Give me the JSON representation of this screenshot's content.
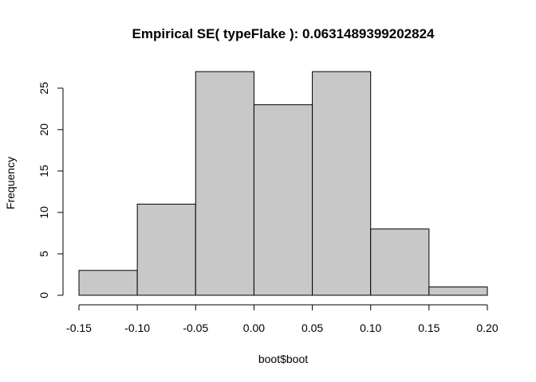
{
  "chart_data": {
    "type": "bar",
    "title": "Empirical SE( typeFlake ):  0.0631489399202824",
    "xlabel": "boot$boot",
    "ylabel": "Frequency",
    "bins": [
      {
        "from": -0.15,
        "to": -0.1,
        "count": 3
      },
      {
        "from": -0.1,
        "to": -0.05,
        "count": 11
      },
      {
        "from": -0.05,
        "to": 0.0,
        "count": 27
      },
      {
        "from": 0.0,
        "to": 0.05,
        "count": 23
      },
      {
        "from": 0.05,
        "to": 0.1,
        "count": 27
      },
      {
        "from": 0.1,
        "to": 0.15,
        "count": 8
      },
      {
        "from": 0.15,
        "to": 0.2,
        "count": 1
      }
    ],
    "x_ticks": [
      -0.15,
      -0.1,
      -0.05,
      0.0,
      0.05,
      0.1,
      0.15,
      0.2
    ],
    "x_tick_labels": [
      "-0.15",
      "-0.10",
      "-0.05",
      "0.00",
      "0.05",
      "0.10",
      "0.15",
      "0.20"
    ],
    "y_ticks": [
      0,
      5,
      10,
      15,
      20,
      25
    ],
    "y_tick_labels": [
      "0",
      "5",
      "10",
      "15",
      "20",
      "25"
    ],
    "xlim": [
      -0.15,
      0.2
    ],
    "ylim": [
      0,
      27
    ],
    "grid": false,
    "bar_color": "#c8c8c8",
    "edge_color": "#000000"
  }
}
